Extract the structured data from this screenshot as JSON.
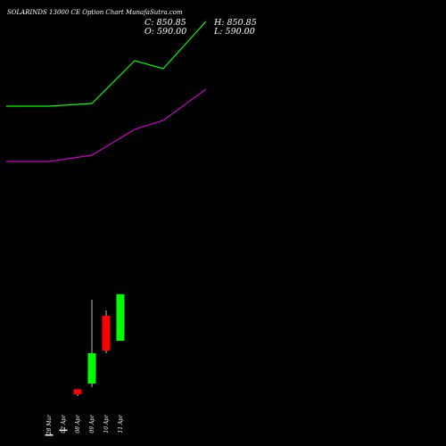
{
  "header": {
    "title": "SOLARINDS 13000  CE Option  Chart MunafaSutra.com",
    "close_label": "C: 850.85",
    "high_label": "H: 850.85",
    "open_label": "O: 590.00",
    "low_label": "L: 590.00"
  },
  "colors": {
    "background": "#000000",
    "up": "#00ff00",
    "down": "#ff0000",
    "flat": "#ffffff",
    "line_upper": "#00ff00",
    "line_lower": "#cc00cc",
    "text": "#ffffff"
  },
  "chart_data": {
    "type": "candlestick",
    "title": "SOLARINDS 13000  CE Option  Chart MunafaSutra.com",
    "categories": [
      "28 Mar",
      "02 Apr",
      "08 Apr",
      "09 Apr",
      "10 Apr",
      "11 Apr"
    ],
    "candles": [
      {
        "date": "28 Mar",
        "open": 65,
        "high": 65,
        "low": 65,
        "close": 65
      },
      {
        "date": "02 Apr",
        "open": 92,
        "high": 92,
        "low": 92,
        "close": 92
      },
      {
        "date": "08 Apr",
        "open": 318,
        "high": 318,
        "low": 280,
        "close": 290
      },
      {
        "date": "09 Apr",
        "open": 350,
        "high": 820,
        "low": 330,
        "close": 520
      },
      {
        "date": "10 Apr",
        "open": 730,
        "high": 760,
        "low": 520,
        "close": 535
      },
      {
        "date": "11 Apr",
        "open": 590,
        "high": 850.85,
        "low": 590,
        "close": 850.85
      }
    ],
    "series": [
      {
        "x": [
          -3,
          0,
          3,
          6,
          8,
          11
        ],
        "values": [
          1905,
          1905,
          1920,
          2160,
          2115,
          2380
        ]
      },
      {
        "x": [
          -3,
          0,
          3,
          6,
          8,
          11
        ],
        "values": [
          1595,
          1595,
          1630,
          1775,
          1825,
          2000
        ]
      }
    ],
    "ylim": [
      0,
      2500
    ],
    "grid": false,
    "legend": "none"
  }
}
